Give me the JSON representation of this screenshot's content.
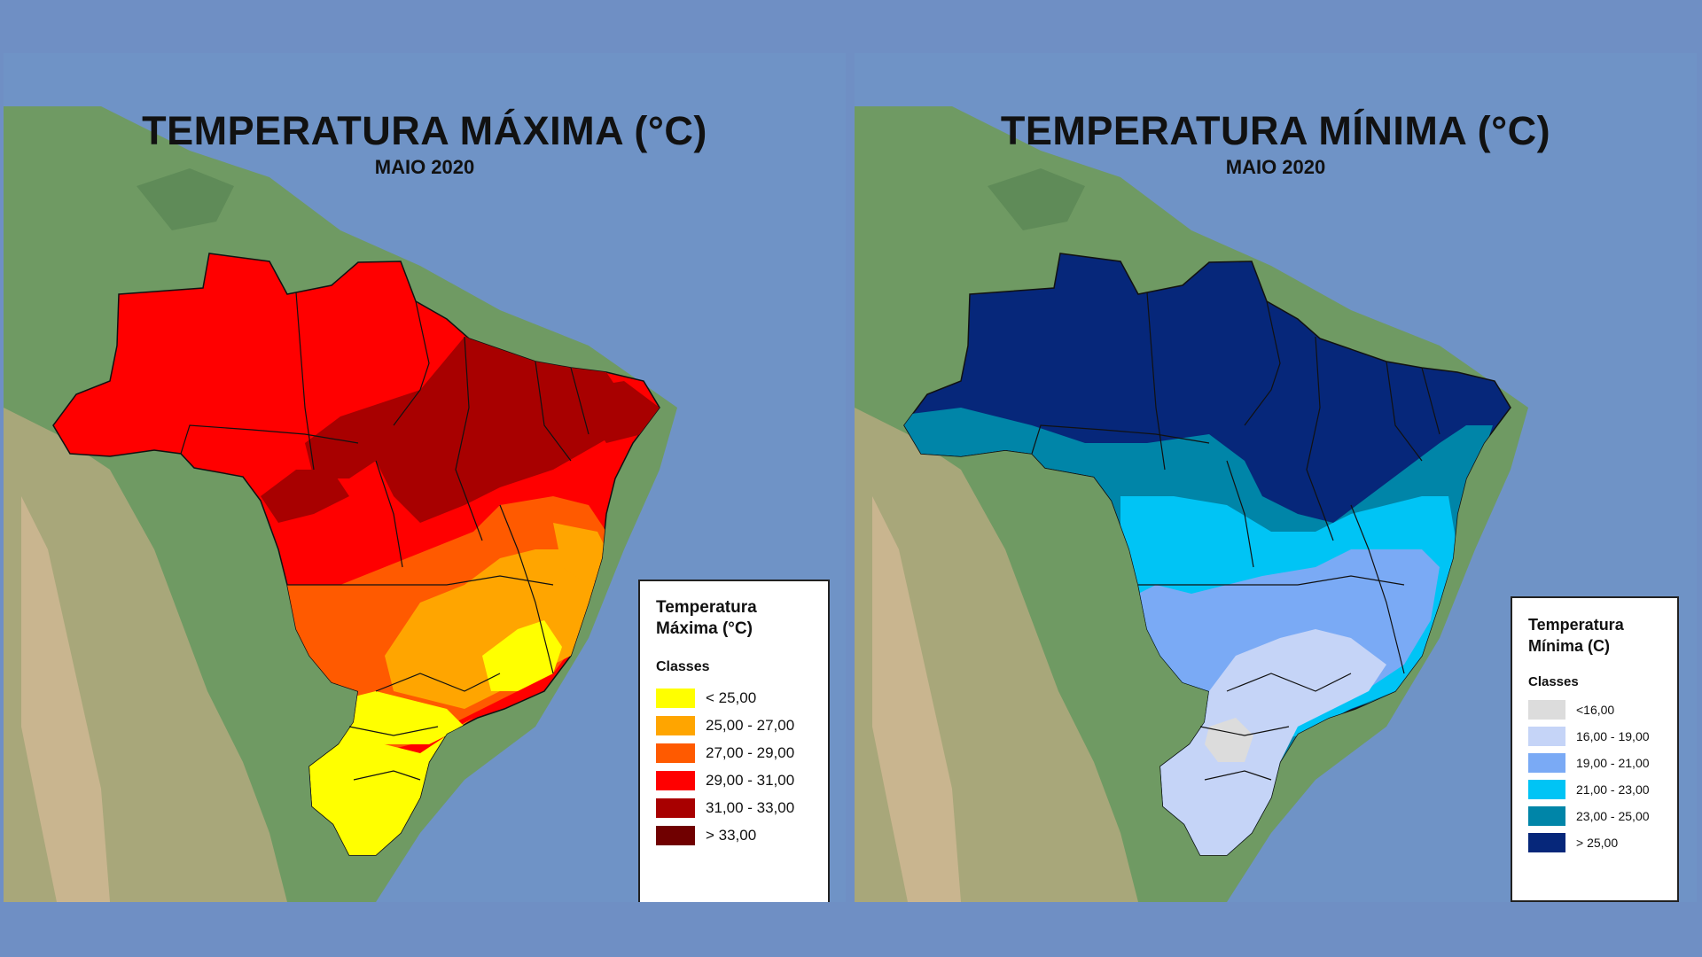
{
  "left_panel": {
    "title": "TEMPERATURA MÁXIMA (°C)",
    "subtitle": "MAIO 2020",
    "legend": {
      "title_line1": "Temperatura",
      "title_line2": "Máxima (°C)",
      "classes_label": "Classes",
      "items": [
        {
          "label": "< 25,00",
          "color": "#ffff00"
        },
        {
          "label": "25,00 - 27,00",
          "color": "#ffa500"
        },
        {
          "label": "27,00 - 29,00",
          "color": "#ff5a00"
        },
        {
          "label": "29,00 - 31,00",
          "color": "#ff0000"
        },
        {
          "label": "31,00 - 33,00",
          "color": "#a80000"
        },
        {
          "label": "> 33,00",
          "color": "#700000"
        }
      ]
    }
  },
  "right_panel": {
    "title": "TEMPERATURA MÍNIMA (°C)",
    "subtitle": "MAIO 2020",
    "legend": {
      "title_line1": "Temperatura",
      "title_line2": "Mínima (C)",
      "classes_label": "Classes",
      "items": [
        {
          "label": "<16,00",
          "color": "#dcdcdc"
        },
        {
          "label": "16,00 - 19,00",
          "color": "#c5d4f7"
        },
        {
          "label": "19,00 - 21,00",
          "color": "#7aaaf5"
        },
        {
          "label": "21,00 - 23,00",
          "color": "#00c4f5"
        },
        {
          "label": "23,00 - 25,00",
          "color": "#0085a8"
        },
        {
          "label": "> 25,00",
          "color": "#06277a"
        }
      ]
    }
  }
}
